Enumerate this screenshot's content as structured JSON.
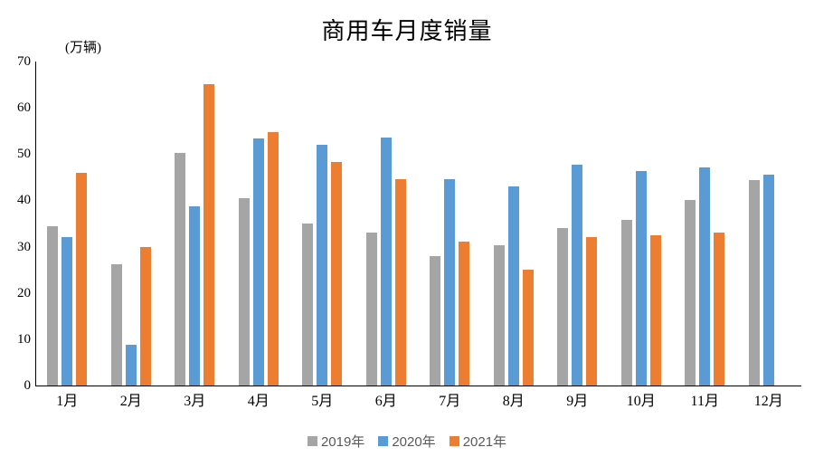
{
  "chart_data": {
    "type": "bar",
    "title": "商用车月度销量",
    "ylabel": "(万辆)",
    "xlabel": "",
    "categories": [
      "1月",
      "2月",
      "3月",
      "4月",
      "5月",
      "6月",
      "7月",
      "8月",
      "9月",
      "10月",
      "11月",
      "12月"
    ],
    "series": [
      {
        "name": "2019年",
        "color": "#A5A5A5",
        "values": [
          34.5,
          26.2,
          50.2,
          40.5,
          35.0,
          33.0,
          28.0,
          30.3,
          34.0,
          35.7,
          40.0,
          44.3
        ]
      },
      {
        "name": "2020年",
        "color": "#5B9BD5",
        "values": [
          32.0,
          8.8,
          38.8,
          53.3,
          52.1,
          53.6,
          44.5,
          43.1,
          47.7,
          46.3,
          47.1,
          45.5
        ]
      },
      {
        "name": "2021年",
        "color": "#ED7D31",
        "values": [
          46.0,
          29.9,
          65.1,
          54.8,
          48.2,
          44.6,
          31.1,
          25.0,
          32.0,
          32.5,
          33.0,
          null
        ]
      }
    ],
    "ylim": [
      0,
      70
    ],
    "y_ticks": [
      0,
      10,
      20,
      30,
      40,
      50,
      60,
      70
    ],
    "grid": false,
    "legend_position": "bottom"
  }
}
